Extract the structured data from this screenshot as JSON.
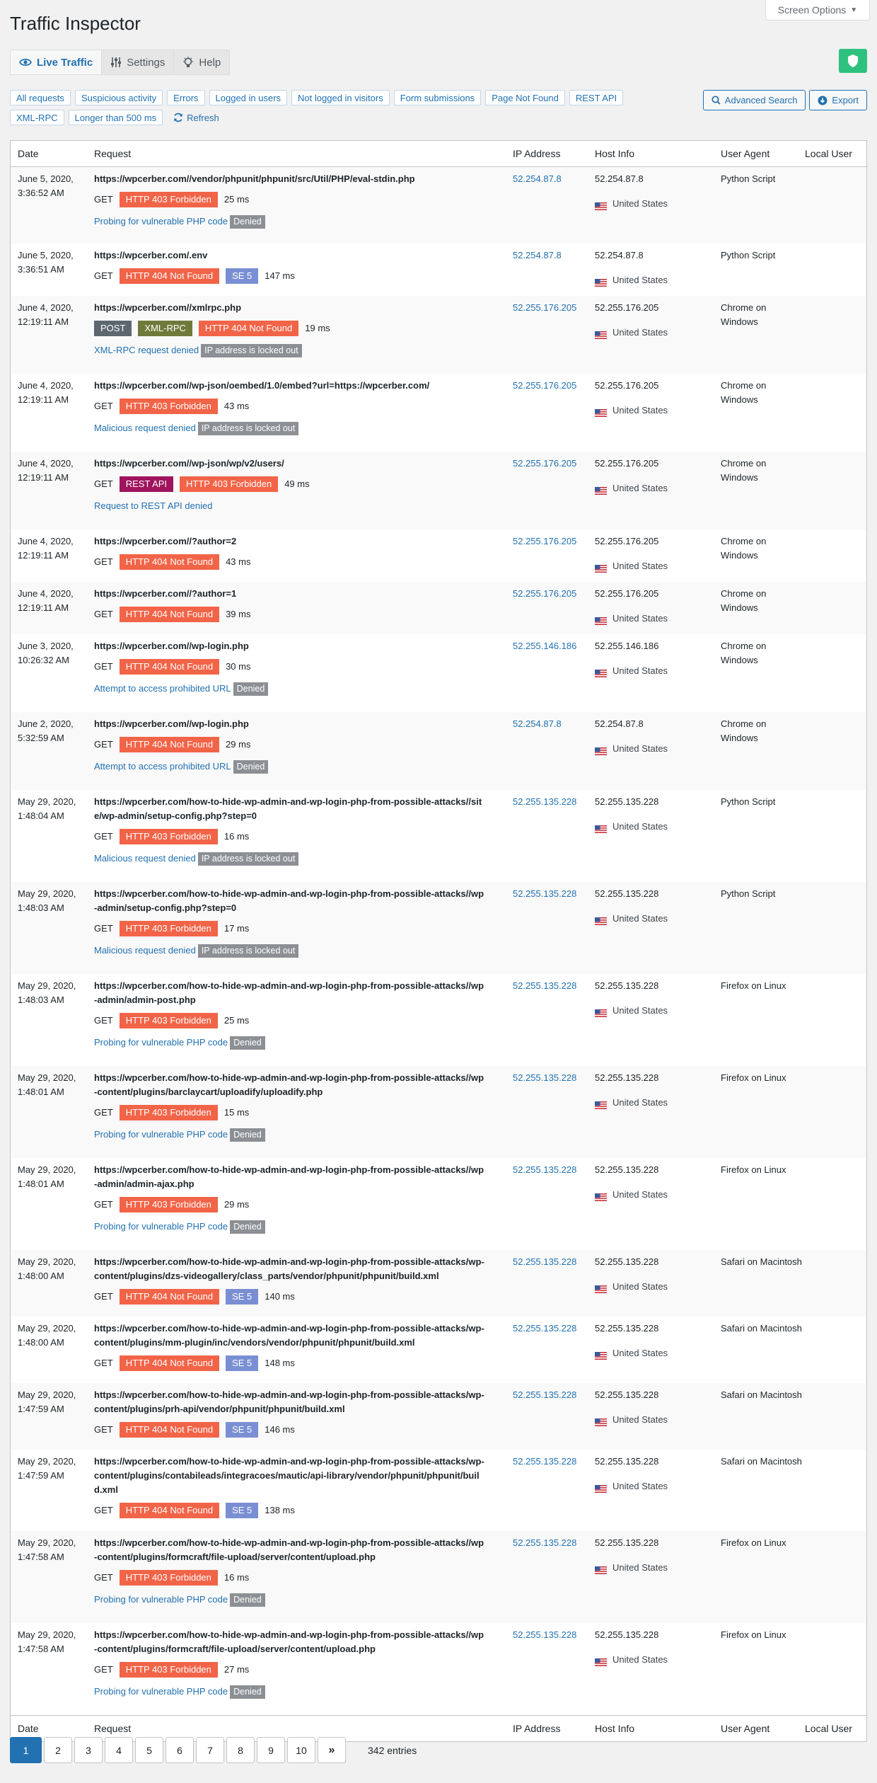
{
  "screen_options": "Screen Options",
  "title": "Traffic Inspector",
  "tabs": [
    {
      "label": "Live Traffic",
      "icon": "eye-icon"
    },
    {
      "label": "Settings",
      "icon": "sliders-icon"
    },
    {
      "label": "Help",
      "icon": "lightbulb-icon"
    }
  ],
  "filters": [
    "All requests",
    "Suspicious activity",
    "Errors",
    "Logged in users",
    "Not logged in visitors",
    "Form submissions",
    "Page Not Found",
    "REST API",
    "XML-RPC",
    "Longer than 500 ms"
  ],
  "refresh_label": "Refresh",
  "actions": {
    "advanced_search": "Advanced Search",
    "export": "Export"
  },
  "columns": {
    "date": "Date",
    "request": "Request",
    "ip": "IP Address",
    "host": "Host Info",
    "ua": "User Agent",
    "local_user": "Local User"
  },
  "colors": {
    "accent": "#2271b1",
    "error_badge": "#f26448",
    "se_badge": "#7a8fd3",
    "rest_badge": "#a0135d",
    "shield": "#2ec27e"
  },
  "rows": [
    {
      "date": "June 5, 2020, 3:36:52 AM",
      "url": "https://wpcerber.com//vendor/phpunit/phpunit/src/Util/PHP/eval-stdin.php",
      "method": "GET",
      "badges": [
        {
          "text": "HTTP 403 Forbidden",
          "type": "red"
        }
      ],
      "ms": "25 ms",
      "reason": "Probing for vulnerable PHP code",
      "tag": "Denied",
      "ip": "52.254.87.8",
      "host": "52.254.87.8",
      "country": "United States",
      "ua": "Python Script"
    },
    {
      "date": "June 5, 2020, 3:36:51 AM",
      "url": "https://wpcerber.com/.env",
      "method": "GET",
      "badges": [
        {
          "text": "HTTP 404 Not Found",
          "type": "red"
        },
        {
          "text": "SE 5",
          "type": "se"
        }
      ],
      "ms": "147 ms",
      "reason": "",
      "tag": "",
      "ip": "52.254.87.8",
      "host": "52.254.87.8",
      "country": "United States",
      "ua": "Python Script"
    },
    {
      "date": "June 4, 2020, 12:19:11 AM",
      "url": "https://wpcerber.com//xmlrpc.php",
      "method": "",
      "badges": [
        {
          "text": "POST",
          "type": "post"
        },
        {
          "text": "XML-RPC",
          "type": "xml"
        },
        {
          "text": "HTTP 404 Not Found",
          "type": "red"
        }
      ],
      "ms": "19 ms",
      "reason": "XML-RPC request denied",
      "tag": "IP address is locked out",
      "ip": "52.255.176.205",
      "host": "52.255.176.205",
      "country": "United States",
      "ua": "Chrome on Windows"
    },
    {
      "date": "June 4, 2020, 12:19:11 AM",
      "url": "https://wpcerber.com//wp-json/oembed/1.0/embed?url=https://wpcerber.com/",
      "method": "GET",
      "badges": [
        {
          "text": "HTTP 403 Forbidden",
          "type": "red"
        }
      ],
      "ms": "43 ms",
      "reason": "Malicious request denied",
      "tag": "IP address is locked out",
      "ip": "52.255.176.205",
      "host": "52.255.176.205",
      "country": "United States",
      "ua": "Chrome on Windows"
    },
    {
      "date": "June 4, 2020, 12:19:11 AM",
      "url": "https://wpcerber.com//wp-json/wp/v2/users/",
      "method": "GET",
      "badges": [
        {
          "text": "REST API",
          "type": "rest"
        },
        {
          "text": "HTTP 403 Forbidden",
          "type": "red"
        }
      ],
      "ms": "49 ms",
      "reason": "Request to REST API denied",
      "tag": "",
      "ip": "52.255.176.205",
      "host": "52.255.176.205",
      "country": "United States",
      "ua": "Chrome on Windows"
    },
    {
      "date": "June 4, 2020, 12:19:11 AM",
      "url": "https://wpcerber.com//?author=2",
      "method": "GET",
      "badges": [
        {
          "text": "HTTP 404 Not Found",
          "type": "red"
        }
      ],
      "ms": "43 ms",
      "reason": "",
      "tag": "",
      "ip": "52.255.176.205",
      "host": "52.255.176.205",
      "country": "United States",
      "ua": "Chrome on Windows"
    },
    {
      "date": "June 4, 2020, 12:19:11 AM",
      "url": "https://wpcerber.com//?author=1",
      "method": "GET",
      "badges": [
        {
          "text": "HTTP 404 Not Found",
          "type": "red"
        }
      ],
      "ms": "39 ms",
      "reason": "",
      "tag": "",
      "ip": "52.255.176.205",
      "host": "52.255.176.205",
      "country": "United States",
      "ua": "Chrome on Windows"
    },
    {
      "date": "June 3, 2020, 10:26:32 AM",
      "url": "https://wpcerber.com//wp-login.php",
      "method": "GET",
      "badges": [
        {
          "text": "HTTP 404 Not Found",
          "type": "red"
        }
      ],
      "ms": "30 ms",
      "reason": "Attempt to access prohibited URL",
      "tag": "Denied",
      "ip": "52.255.146.186",
      "host": "52.255.146.186",
      "country": "United States",
      "ua": "Chrome on Windows"
    },
    {
      "date": "June 2, 2020, 5:32:59 AM",
      "url": "https://wpcerber.com//wp-login.php",
      "method": "GET",
      "badges": [
        {
          "text": "HTTP 404 Not Found",
          "type": "red"
        }
      ],
      "ms": "29 ms",
      "reason": "Attempt to access prohibited URL",
      "tag": "Denied",
      "ip": "52.254.87.8",
      "host": "52.254.87.8",
      "country": "United States",
      "ua": "Chrome on Windows"
    },
    {
      "date": "May 29, 2020, 1:48:04 AM",
      "url": "https://wpcerber.com/how-to-hide-wp-admin-and-wp-login-php-from-possible-attacks//site/wp-admin/setup-config.php?step=0",
      "method": "GET",
      "badges": [
        {
          "text": "HTTP 403 Forbidden",
          "type": "red"
        }
      ],
      "ms": "16 ms",
      "reason": "Malicious request denied",
      "tag": "IP address is locked out",
      "ip": "52.255.135.228",
      "host": "52.255.135.228",
      "country": "United States",
      "ua": "Python Script"
    },
    {
      "date": "May 29, 2020, 1:48:03 AM",
      "url": "https://wpcerber.com/how-to-hide-wp-admin-and-wp-login-php-from-possible-attacks//wp-admin/setup-config.php?step=0",
      "method": "GET",
      "badges": [
        {
          "text": "HTTP 403 Forbidden",
          "type": "red"
        }
      ],
      "ms": "17 ms",
      "reason": "Malicious request denied",
      "tag": "IP address is locked out",
      "ip": "52.255.135.228",
      "host": "52.255.135.228",
      "country": "United States",
      "ua": "Python Script"
    },
    {
      "date": "May 29, 2020, 1:48:03 AM",
      "url": "https://wpcerber.com/how-to-hide-wp-admin-and-wp-login-php-from-possible-attacks//wp-admin/admin-post.php",
      "method": "GET",
      "badges": [
        {
          "text": "HTTP 403 Forbidden",
          "type": "red"
        }
      ],
      "ms": "25 ms",
      "reason": "Probing for vulnerable PHP code",
      "tag": "Denied",
      "ip": "52.255.135.228",
      "host": "52.255.135.228",
      "country": "United States",
      "ua": "Firefox on Linux"
    },
    {
      "date": "May 29, 2020, 1:48:01 AM",
      "url": "https://wpcerber.com/how-to-hide-wp-admin-and-wp-login-php-from-possible-attacks//wp-content/plugins/barclaycart/uploadify/uploadify.php",
      "method": "GET",
      "badges": [
        {
          "text": "HTTP 403 Forbidden",
          "type": "red"
        }
      ],
      "ms": "15 ms",
      "reason": "Probing for vulnerable PHP code",
      "tag": "Denied",
      "ip": "52.255.135.228",
      "host": "52.255.135.228",
      "country": "United States",
      "ua": "Firefox on Linux"
    },
    {
      "date": "May 29, 2020, 1:48:01 AM",
      "url": "https://wpcerber.com/how-to-hide-wp-admin-and-wp-login-php-from-possible-attacks//wp-admin/admin-ajax.php",
      "method": "GET",
      "badges": [
        {
          "text": "HTTP 403 Forbidden",
          "type": "red"
        }
      ],
      "ms": "29 ms",
      "reason": "Probing for vulnerable PHP code",
      "tag": "Denied",
      "ip": "52.255.135.228",
      "host": "52.255.135.228",
      "country": "United States",
      "ua": "Firefox on Linux"
    },
    {
      "date": "May 29, 2020, 1:48:00 AM",
      "url": "https://wpcerber.com/how-to-hide-wp-admin-and-wp-login-php-from-possible-attacks/wp-content/plugins/dzs-videogallery/class_parts/vendor/phpunit/phpunit/build.xml",
      "method": "GET",
      "badges": [
        {
          "text": "HTTP 404 Not Found",
          "type": "red"
        },
        {
          "text": "SE 5",
          "type": "se"
        }
      ],
      "ms": "140 ms",
      "reason": "",
      "tag": "",
      "ip": "52.255.135.228",
      "host": "52.255.135.228",
      "country": "United States",
      "ua": "Safari on Macintosh"
    },
    {
      "date": "May 29, 2020, 1:48:00 AM",
      "url": "https://wpcerber.com/how-to-hide-wp-admin-and-wp-login-php-from-possible-attacks/wp-content/plugins/mm-plugin/inc/vendors/vendor/phpunit/phpunit/build.xml",
      "method": "GET",
      "badges": [
        {
          "text": "HTTP 404 Not Found",
          "type": "red"
        },
        {
          "text": "SE 5",
          "type": "se"
        }
      ],
      "ms": "148 ms",
      "reason": "",
      "tag": "",
      "ip": "52.255.135.228",
      "host": "52.255.135.228",
      "country": "United States",
      "ua": "Safari on Macintosh"
    },
    {
      "date": "May 29, 2020, 1:47:59 AM",
      "url": "https://wpcerber.com/how-to-hide-wp-admin-and-wp-login-php-from-possible-attacks/wp-content/plugins/prh-api/vendor/phpunit/phpunit/build.xml",
      "method": "GET",
      "badges": [
        {
          "text": "HTTP 404 Not Found",
          "type": "red"
        },
        {
          "text": "SE 5",
          "type": "se"
        }
      ],
      "ms": "146 ms",
      "reason": "",
      "tag": "",
      "ip": "52.255.135.228",
      "host": "52.255.135.228",
      "country": "United States",
      "ua": "Safari on Macintosh"
    },
    {
      "date": "May 29, 2020, 1:47:59 AM",
      "url": "https://wpcerber.com/how-to-hide-wp-admin-and-wp-login-php-from-possible-attacks/wp-content/plugins/contabileads/integracoes/mautic/api-library/vendor/phpunit/phpunit/build.xml",
      "method": "GET",
      "badges": [
        {
          "text": "HTTP 404 Not Found",
          "type": "red"
        },
        {
          "text": "SE 5",
          "type": "se"
        }
      ],
      "ms": "138 ms",
      "reason": "",
      "tag": "",
      "ip": "52.255.135.228",
      "host": "52.255.135.228",
      "country": "United States",
      "ua": "Safari on Macintosh"
    },
    {
      "date": "May 29, 2020, 1:47:58 AM",
      "url": "https://wpcerber.com/how-to-hide-wp-admin-and-wp-login-php-from-possible-attacks//wp-content/plugins/formcraft/file-upload/server/content/upload.php",
      "method": "GET",
      "badges": [
        {
          "text": "HTTP 403 Forbidden",
          "type": "red"
        }
      ],
      "ms": "16 ms",
      "reason": "Probing for vulnerable PHP code",
      "tag": "Denied",
      "ip": "52.255.135.228",
      "host": "52.255.135.228",
      "country": "United States",
      "ua": "Firefox on Linux"
    },
    {
      "date": "May 29, 2020, 1:47:58 AM",
      "url": "https://wpcerber.com/how-to-hide-wp-admin-and-wp-login-php-from-possible-attacks//wp-content/plugins/formcraft/file-upload/server/content/upload.php",
      "method": "GET",
      "badges": [
        {
          "text": "HTTP 403 Forbidden",
          "type": "red"
        }
      ],
      "ms": "27 ms",
      "reason": "Probing for vulnerable PHP code",
      "tag": "Denied",
      "ip": "52.255.135.228",
      "host": "52.255.135.228",
      "country": "United States",
      "ua": "Firefox on Linux"
    }
  ],
  "pagination": {
    "pages": [
      "1",
      "2",
      "3",
      "4",
      "5",
      "6",
      "7",
      "8",
      "9",
      "10"
    ],
    "current": "1",
    "next": "»",
    "entries": "342 entries"
  }
}
